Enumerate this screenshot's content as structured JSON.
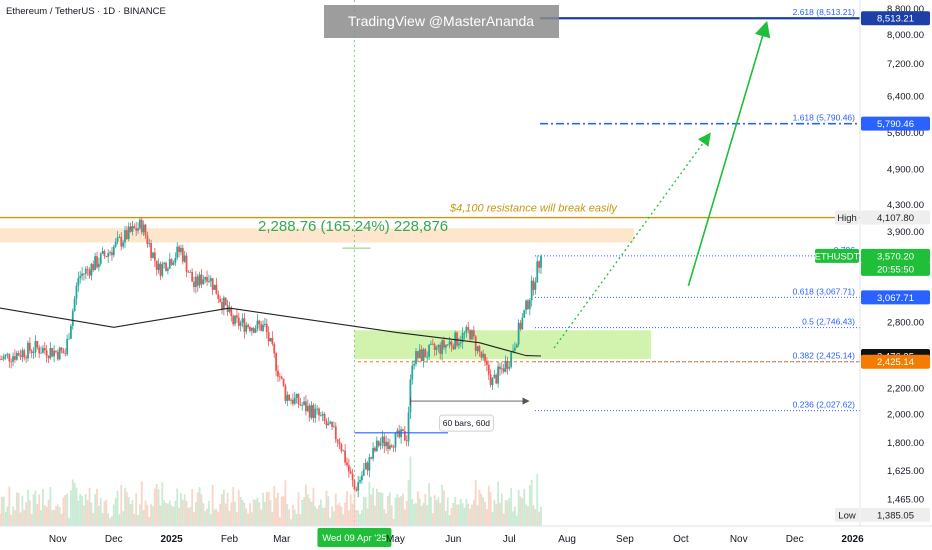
{
  "header": {
    "symbol_line": "Ethereum / TetherUS · 1D · BINANCE",
    "watermark": "TradingView @MasterAnanda"
  },
  "annotations": {
    "resistance_text": "$4,100 resistance will break easily",
    "gain_text": "2,288.76 (165.24%) 228,876",
    "bars_text": "60 bars, 60d",
    "date_label": "Wed 09 Apr '25"
  },
  "colors": {
    "up": "#26a69a",
    "down": "#ef5350",
    "fib": "#2962ff",
    "target": "#1c3fa8",
    "resistance": "#c8960c",
    "green": "#1fbf3a",
    "ma": "#222222",
    "support_zone": "#c7f09a",
    "resistance_zone": "#fde3c7"
  },
  "chart_data": {
    "type": "candlestick",
    "title": "Ethereum / TetherUS · 1D · BINANCE",
    "x_axis": {
      "tick_labels": [
        "Nov",
        "Dec",
        "2025",
        "Feb",
        "Mar",
        "Wed 09 Apr '25",
        "May",
        "Jun",
        "Jul",
        "Aug",
        "Sep",
        "Oct",
        "Nov",
        "Dec",
        "2026"
      ],
      "start": "2024-10-01",
      "end": "2026-01-05"
    },
    "y_axis": {
      "scale": "log",
      "range": [
        1330,
        9100
      ],
      "tick_labels": [
        "8,800.00",
        "8,000.00",
        "7,200.00",
        "6,400.00",
        "5,600.00",
        "4,900.00",
        "4,300.00",
        "3,900.00",
        "3,500.00",
        "3,100.00",
        "2,800.00",
        "2,500.00",
        "2,200.00",
        "2,000.00",
        "1,800.00",
        "1,625.00",
        "1,465.00"
      ]
    },
    "price_path": [
      {
        "date": "2024-10-01",
        "close": 2450
      },
      {
        "date": "2024-10-20",
        "close": 2550
      },
      {
        "date": "2024-11-05",
        "close": 2500
      },
      {
        "date": "2024-11-12",
        "close": 3300
      },
      {
        "date": "2024-11-25",
        "close": 3550
      },
      {
        "date": "2024-12-08",
        "close": 3850
      },
      {
        "date": "2024-12-16",
        "close": 4000
      },
      {
        "date": "2024-12-25",
        "close": 3400
      },
      {
        "date": "2025-01-06",
        "close": 3650
      },
      {
        "date": "2025-01-13",
        "close": 3200
      },
      {
        "date": "2025-01-20",
        "close": 3350
      },
      {
        "date": "2025-02-03",
        "close": 2800
      },
      {
        "date": "2025-02-20",
        "close": 2750
      },
      {
        "date": "2025-03-03",
        "close": 2150
      },
      {
        "date": "2025-03-20",
        "close": 2000
      },
      {
        "date": "2025-04-01",
        "close": 1820
      },
      {
        "date": "2025-04-09",
        "close": 1520
      },
      {
        "date": "2025-04-22",
        "close": 1800
      },
      {
        "date": "2025-05-07",
        "close": 1850
      },
      {
        "date": "2025-05-10",
        "close": 2450
      },
      {
        "date": "2025-05-25",
        "close": 2550
      },
      {
        "date": "2025-06-10",
        "close": 2700
      },
      {
        "date": "2025-06-22",
        "close": 2250
      },
      {
        "date": "2025-07-01",
        "close": 2450
      },
      {
        "date": "2025-07-10",
        "close": 2950
      },
      {
        "date": "2025-07-18",
        "close": 3570.2
      }
    ],
    "moving_average": [
      {
        "date": "2024-10-01",
        "value": 2950
      },
      {
        "date": "2024-12-01",
        "value": 2750
      },
      {
        "date": "2025-02-01",
        "value": 2950
      },
      {
        "date": "2025-05-01",
        "value": 2700
      },
      {
        "date": "2025-06-15",
        "value": 2600
      },
      {
        "date": "2025-07-10",
        "value": 2480
      },
      {
        "date": "2025-07-18",
        "value": 2476.35
      }
    ],
    "fib_levels": [
      {
        "ratio": "2.618",
        "value": 8513.21,
        "label": "2.618 (8,513.21)"
      },
      {
        "ratio": "1.618",
        "value": 5790.46,
        "label": "1.618 (5,790.46)"
      },
      {
        "ratio": "0.786",
        "value": 3570.2,
        "label": "0.786"
      },
      {
        "ratio": "0.618",
        "value": 3067.71,
        "label": "0.618 (3,067.71)"
      },
      {
        "ratio": "0.5",
        "value": 2746.43,
        "label": "0.5 (2,746.43)"
      },
      {
        "ratio": "0.382",
        "value": 2425.14,
        "label": "0.382 (2,425.14)"
      },
      {
        "ratio": "0.236",
        "value": 2027.62,
        "label": "0.236 (2,027.62)"
      }
    ],
    "price_tags": [
      {
        "label": "8,513.21",
        "value": 8513.21,
        "bg": "#1c3fa8",
        "fg": "#ffffff"
      },
      {
        "label": "5,790.46",
        "value": 5790.46,
        "bg": "#2962ff",
        "fg": "#ffffff"
      },
      {
        "label": "High",
        "value": 4107.8,
        "bg": "#eeeeee",
        "fg": "#222222"
      },
      {
        "label": "4,107.80",
        "value": 4107.8,
        "bg": "#eeeeee",
        "fg": "#222222"
      },
      {
        "label": "ETHUSDT",
        "value": 3570.2,
        "bg": "#1fbf3a",
        "fg": "#ffffff"
      },
      {
        "label": "3,570.20",
        "value": 3570.2,
        "bg": "#1fbf3a",
        "fg": "#ffffff"
      },
      {
        "label": "20:55:50",
        "value": 3570.2,
        "bg": "#1fbf3a",
        "fg": "#ffffff"
      },
      {
        "label": "3,067.71",
        "value": 3067.71,
        "bg": "#2962ff",
        "fg": "#ffffff"
      },
      {
        "label": "2,476.35",
        "value": 2476.35,
        "bg": "#111111",
        "fg": "#ffffff"
      },
      {
        "label": "2,425.14",
        "value": 2425.14,
        "bg": "#f57c00",
        "fg": "#ffffff"
      },
      {
        "label": "Low",
        "value": 1385.05,
        "bg": "#eeeeee",
        "fg": "#222222"
      },
      {
        "label": "1,385.05",
        "value": 1385.05,
        "bg": "#eeeeee",
        "fg": "#222222"
      }
    ],
    "zones": [
      {
        "name": "resistance",
        "from": 3750,
        "to": 3950,
        "start": "2024-10-01",
        "end": "2025-09-06"
      },
      {
        "name": "support",
        "from": 2450,
        "to": 2720,
        "start": "2025-04-09",
        "end": "2025-09-15"
      }
    ],
    "resistance_line": 4107.8,
    "gain_measure": {
      "from": 1385.05,
      "to": 3673.81,
      "date": "2025-04-09"
    },
    "bars_range": {
      "start": "2025-05-09",
      "end": "2025-07-10",
      "value": 2100
    },
    "arrows": [
      {
        "style": "dotted",
        "from": {
          "date": "2025-07-25",
          "value": 2550
        },
        "to": {
          "date": "2025-10-15",
          "value": 5500
        }
      },
      {
        "style": "solid",
        "from": {
          "date": "2025-10-05",
          "value": 3200
        },
        "to": {
          "date": "2025-11-15",
          "value": 8200
        }
      }
    ],
    "grid": false,
    "legend": "none"
  }
}
